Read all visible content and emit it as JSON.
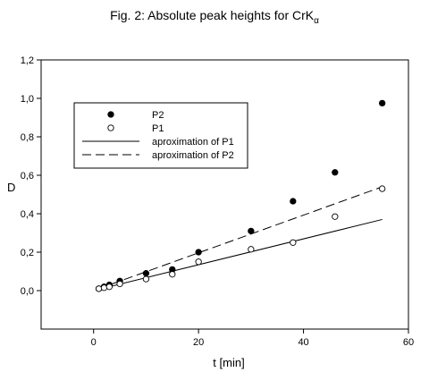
{
  "chart_data": {
    "type": "scatter",
    "title": "Fig. 2: Absolute peak heights for CrK",
    "title_subscript": "α",
    "xlabel": "t [min]",
    "ylabel": "D",
    "xlim": [
      -10,
      60
    ],
    "ylim": [
      -0.2,
      1.2
    ],
    "x_ticks": [
      0,
      20,
      40,
      60
    ],
    "x_tick_labels": [
      "0",
      "20",
      "40",
      "60"
    ],
    "y_ticks": [
      0.0,
      0.2,
      0.4,
      0.6,
      0.8,
      1.0,
      1.2
    ],
    "y_tick_labels": [
      "0,0",
      "0,2",
      "0,4",
      "0,6",
      "0,8",
      "1,0",
      "1,2"
    ],
    "grid": false,
    "legend_position": "top-left",
    "series": [
      {
        "name": "P2",
        "marker": "filled-circle",
        "x": [
          1,
          2,
          3,
          5,
          10,
          15,
          20,
          30,
          38,
          46,
          55
        ],
        "y": [
          0.01,
          0.02,
          0.03,
          0.05,
          0.09,
          0.11,
          0.2,
          0.31,
          0.465,
          0.615,
          0.975
        ]
      },
      {
        "name": "P1",
        "marker": "open-circle",
        "x": [
          1,
          2,
          3,
          5,
          10,
          15,
          20,
          30,
          38,
          46,
          55
        ],
        "y": [
          0.01,
          0.015,
          0.02,
          0.035,
          0.06,
          0.085,
          0.15,
          0.215,
          0.25,
          0.385,
          0.53
        ]
      },
      {
        "name": "aproximation of P1",
        "line": "solid",
        "x": [
          1,
          55
        ],
        "y": [
          0.007,
          0.37
        ]
      },
      {
        "name": "aproximation of P2",
        "line": "dashed",
        "x": [
          1,
          55
        ],
        "y": [
          0.01,
          0.54
        ]
      }
    ]
  }
}
